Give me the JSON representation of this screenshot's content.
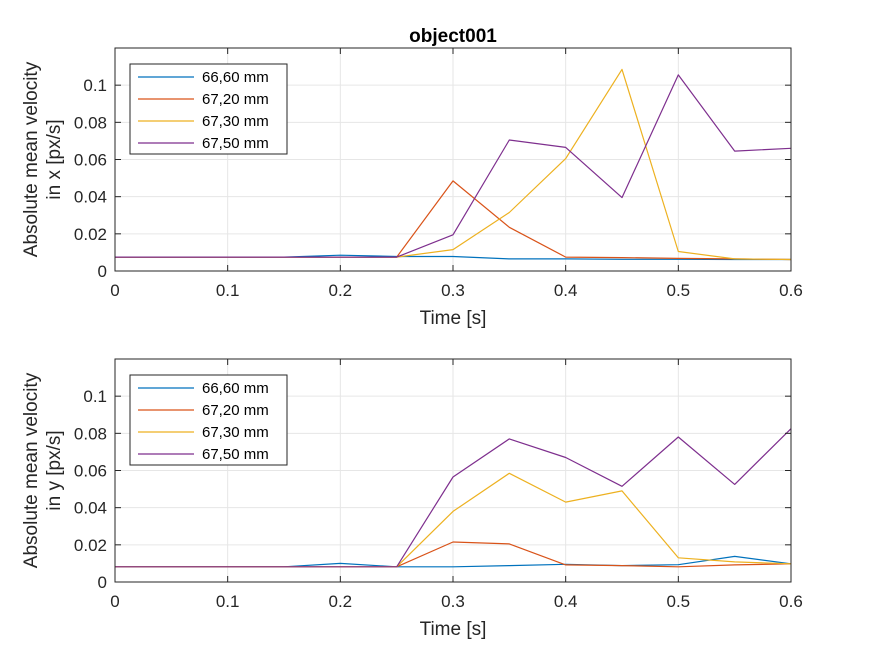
{
  "figure": {
    "title": "object001"
  },
  "chart_data": [
    {
      "type": "line",
      "title": "object001",
      "xlabel": "Time [s]",
      "ylabel": [
        "Absolute mean velocity",
        "in x [px/s]"
      ],
      "xlim": [
        0,
        0.6
      ],
      "ylim": [
        0,
        0.12
      ],
      "xticks": [
        0,
        0.1,
        0.2,
        0.3,
        0.4,
        0.5,
        0.6
      ],
      "xtick_labels": [
        "0",
        "0.1",
        "0.2",
        "0.3",
        "0.4",
        "0.5",
        "0.6"
      ],
      "yticks": [
        0,
        0.02,
        0.04,
        0.06,
        0.08,
        0.1
      ],
      "ytick_labels": [
        "0",
        "0.02",
        "0.04",
        "0.06",
        "0.08",
        "0.1"
      ],
      "grid": true,
      "legend_position": "top-left",
      "x": [
        0,
        0.05,
        0.1,
        0.15,
        0.2,
        0.25,
        0.3,
        0.35,
        0.4,
        0.45,
        0.5,
        0.55,
        0.6
      ],
      "series": [
        {
          "name": "66,60 mm",
          "color": "#0072BD",
          "values": [
            0.0075,
            0.0075,
            0.0075,
            0.0075,
            0.0085,
            0.0078,
            0.0078,
            0.0065,
            0.0065,
            0.0063,
            0.0063,
            0.0062,
            0.0062
          ]
        },
        {
          "name": "67,20 mm",
          "color": "#D95319",
          "values": [
            0.0075,
            0.0075,
            0.0075,
            0.0075,
            0.0075,
            0.0075,
            0.0485,
            0.0235,
            0.0075,
            0.0072,
            0.0068,
            0.0065,
            0.0062
          ]
        },
        {
          "name": "67,30 mm",
          "color": "#EDB120",
          "values": [
            0.0075,
            0.0075,
            0.0075,
            0.0075,
            0.0075,
            0.0075,
            0.0115,
            0.0315,
            0.0605,
            0.1085,
            0.0105,
            0.0065,
            0.0062
          ]
        },
        {
          "name": "67,50 mm",
          "color": "#7E2F8E",
          "values": [
            0.0075,
            0.0075,
            0.0075,
            0.0075,
            0.0075,
            0.0075,
            0.0195,
            0.0705,
            0.0665,
            0.0395,
            0.1055,
            0.0645,
            0.066
          ]
        }
      ]
    },
    {
      "type": "line",
      "title": "",
      "xlabel": "Time [s]",
      "ylabel": [
        "Absolute mean velocity",
        "in y [px/s]"
      ],
      "xlim": [
        0,
        0.6
      ],
      "ylim": [
        0,
        0.12
      ],
      "xticks": [
        0,
        0.1,
        0.2,
        0.3,
        0.4,
        0.5,
        0.6
      ],
      "xtick_labels": [
        "0",
        "0.1",
        "0.2",
        "0.3",
        "0.4",
        "0.5",
        "0.6"
      ],
      "yticks": [
        0,
        0.02,
        0.04,
        0.06,
        0.08,
        0.1
      ],
      "ytick_labels": [
        "0",
        "0.02",
        "0.04",
        "0.06",
        "0.08",
        "0.1"
      ],
      "grid": true,
      "legend_position": "top-left",
      "x": [
        0,
        0.05,
        0.1,
        0.15,
        0.2,
        0.25,
        0.3,
        0.35,
        0.4,
        0.45,
        0.5,
        0.55,
        0.6
      ],
      "series": [
        {
          "name": "66,60 mm",
          "color": "#0072BD",
          "values": [
            0.0082,
            0.0082,
            0.0082,
            0.0082,
            0.01,
            0.0082,
            0.0082,
            0.0088,
            0.0095,
            0.0088,
            0.0093,
            0.0138,
            0.0098
          ]
        },
        {
          "name": "67,20 mm",
          "color": "#D95319",
          "values": [
            0.0082,
            0.0082,
            0.0082,
            0.0082,
            0.0082,
            0.0082,
            0.0215,
            0.0205,
            0.0092,
            0.0088,
            0.0082,
            0.0092,
            0.0098
          ]
        },
        {
          "name": "67,30 mm",
          "color": "#EDB120",
          "values": [
            0.0082,
            0.0082,
            0.0082,
            0.0082,
            0.0082,
            0.0082,
            0.038,
            0.0585,
            0.043,
            0.049,
            0.013,
            0.0108,
            0.0098
          ]
        },
        {
          "name": "67,50 mm",
          "color": "#7E2F8E",
          "values": [
            0.0082,
            0.0082,
            0.0082,
            0.0082,
            0.0082,
            0.0082,
            0.0565,
            0.077,
            0.067,
            0.0515,
            0.078,
            0.0525,
            0.0825
          ]
        }
      ]
    }
  ]
}
